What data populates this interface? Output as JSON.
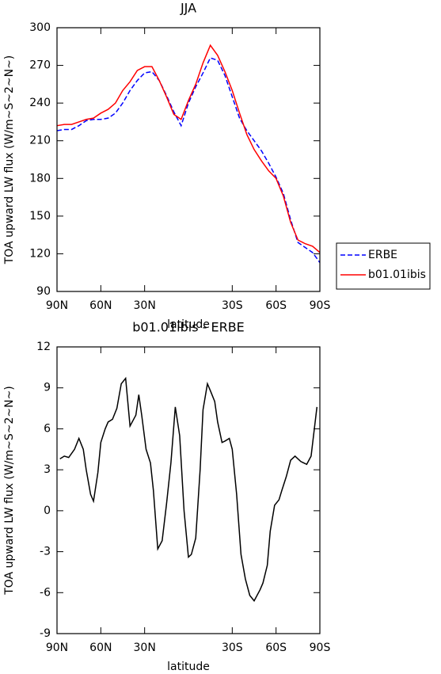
{
  "chart_data": [
    {
      "type": "line",
      "title": "JJA",
      "xlabel": "latitude",
      "ylabel": "TOA upward LW flux (W/m~S~2~N~)",
      "x": [
        90,
        85,
        80,
        75,
        70,
        65,
        60,
        55,
        50,
        45,
        40,
        35,
        30,
        25,
        20,
        15,
        10,
        5,
        0,
        -5,
        -10,
        -15,
        -20,
        -25,
        -30,
        -35,
        -40,
        -45,
        -50,
        -55,
        -60,
        -65,
        -70,
        -75,
        -80,
        -85,
        -90
      ],
      "series": [
        {
          "name": "ERBE",
          "color": "#0000ff",
          "dashed": true,
          "values": [
            218,
            219,
            219,
            222,
            226,
            227,
            227,
            228,
            232,
            240,
            250,
            258,
            264,
            265,
            258,
            246,
            233,
            222,
            240,
            253,
            264,
            276,
            274,
            262,
            245,
            228,
            218,
            210,
            202,
            192,
            181,
            168,
            147,
            129,
            125,
            121,
            113
          ]
        },
        {
          "name": "b01.01ibis",
          "color": "#ff0000",
          "dashed": false,
          "values": [
            222,
            223,
            223,
            225,
            227,
            228,
            232,
            235,
            240,
            250,
            257,
            266,
            269,
            269,
            258,
            245,
            231,
            227,
            242,
            255,
            272,
            286,
            278,
            265,
            250,
            232,
            215,
            203,
            194,
            186,
            180,
            166,
            145,
            131,
            128,
            126,
            121
          ]
        }
      ],
      "xlim": [
        90,
        -90
      ],
      "xticks": [
        {
          "value": 90,
          "label": "90N"
        },
        {
          "value": 60,
          "label": "60N"
        },
        {
          "value": 30,
          "label": "30N"
        },
        {
          "value": -30,
          "label": "30S"
        },
        {
          "value": -60,
          "label": "60S"
        },
        {
          "value": -90,
          "label": "90S"
        }
      ],
      "ylim": [
        90,
        300
      ],
      "yticks": [
        90,
        120,
        150,
        180,
        210,
        240,
        270,
        300
      ],
      "legend": "right"
    },
    {
      "type": "line",
      "title": "b01.01ibis - ERBE",
      "xlabel": "latitude",
      "ylabel": "TOA upward LW flux (W/m~S~2~N~)",
      "x": [
        88,
        85,
        82,
        78,
        75,
        72,
        70,
        67,
        65,
        62,
        60,
        57,
        55,
        52,
        49,
        46,
        43,
        40,
        36,
        34,
        32,
        29,
        26,
        24,
        21,
        18,
        15,
        12,
        9,
        6,
        3,
        0,
        -2,
        -5,
        -8,
        -10,
        -13,
        -15,
        -18,
        -20,
        -23,
        -25,
        -28,
        -30,
        -33,
        -36,
        -39,
        -42,
        -45,
        -49,
        -51,
        -54,
        -56,
        -59,
        -62,
        -64,
        -67,
        -70,
        -73,
        -77,
        -81,
        -84,
        -88
      ],
      "series": [
        {
          "color": "#000000",
          "dashed": false,
          "values": [
            3.8,
            4.0,
            3.9,
            4.5,
            5.3,
            4.5,
            3.0,
            1.2,
            0.7,
            2.8,
            5.0,
            6.0,
            6.5,
            6.7,
            7.5,
            9.3,
            9.7,
            6.2,
            7.0,
            8.5,
            7.0,
            4.5,
            3.5,
            1.5,
            -2.8,
            -2.2,
            0.5,
            3.5,
            7.6,
            5.5,
            0,
            -3.4,
            -3.2,
            -2,
            3.0,
            7.4,
            9.3,
            8.8,
            8.0,
            6.5,
            5.0,
            5.1,
            5.3,
            4.5,
            1.2,
            -3.2,
            -5.0,
            -6.2,
            -6.6,
            -5.8,
            -5.3,
            -4,
            -1.5,
            0.4,
            0.8,
            1.5,
            2.5,
            3.7,
            4.0,
            3.6,
            3.4,
            4.0,
            7.6
          ]
        }
      ],
      "xlim": [
        90,
        -90
      ],
      "xticks": [
        {
          "value": 90,
          "label": "90N"
        },
        {
          "value": 60,
          "label": "60N"
        },
        {
          "value": 30,
          "label": "30N"
        },
        {
          "value": -30,
          "label": "30S"
        },
        {
          "value": -60,
          "label": "60S"
        },
        {
          "value": -90,
          "label": "90S"
        }
      ],
      "ylim": [
        -9,
        12
      ],
      "yticks": [
        -9,
        -6,
        -3,
        0,
        3,
        6,
        9,
        12
      ]
    }
  ]
}
